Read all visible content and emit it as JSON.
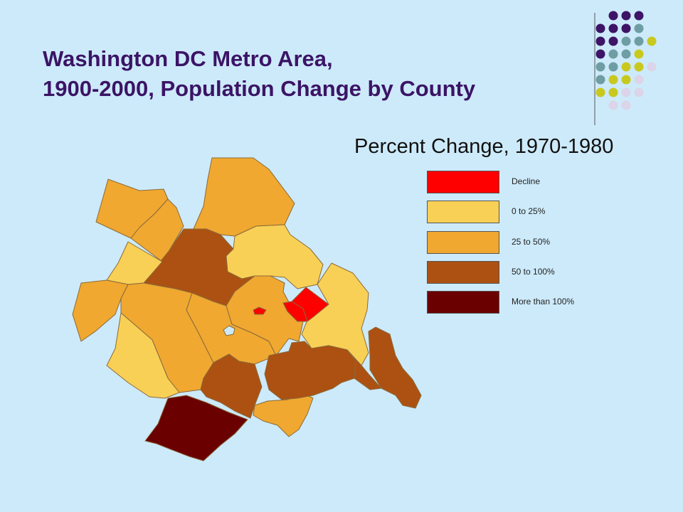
{
  "title_line1": "Washington DC Metro Area,",
  "title_line2": "1900-2000, Population Change by County",
  "map": {
    "subtitle": "Percent Change, 1970-1980",
    "legend": [
      {
        "label": "Decline",
        "color": "#ff0000"
      },
      {
        "label": "0 to 25%",
        "color": "#f9d056"
      },
      {
        "label": "25 to 50%",
        "color": "#f0a830"
      },
      {
        "label": "50 to 100%",
        "color": "#ac5112"
      },
      {
        "label": "More than 100%",
        "color": "#6b0000"
      }
    ]
  },
  "decoration": {
    "dot_colors": {
      "purple": "#3d1466",
      "teal": "#6e9ea3",
      "yellow": "#c9c81f",
      "lavender": "#dcd4e8"
    }
  }
}
